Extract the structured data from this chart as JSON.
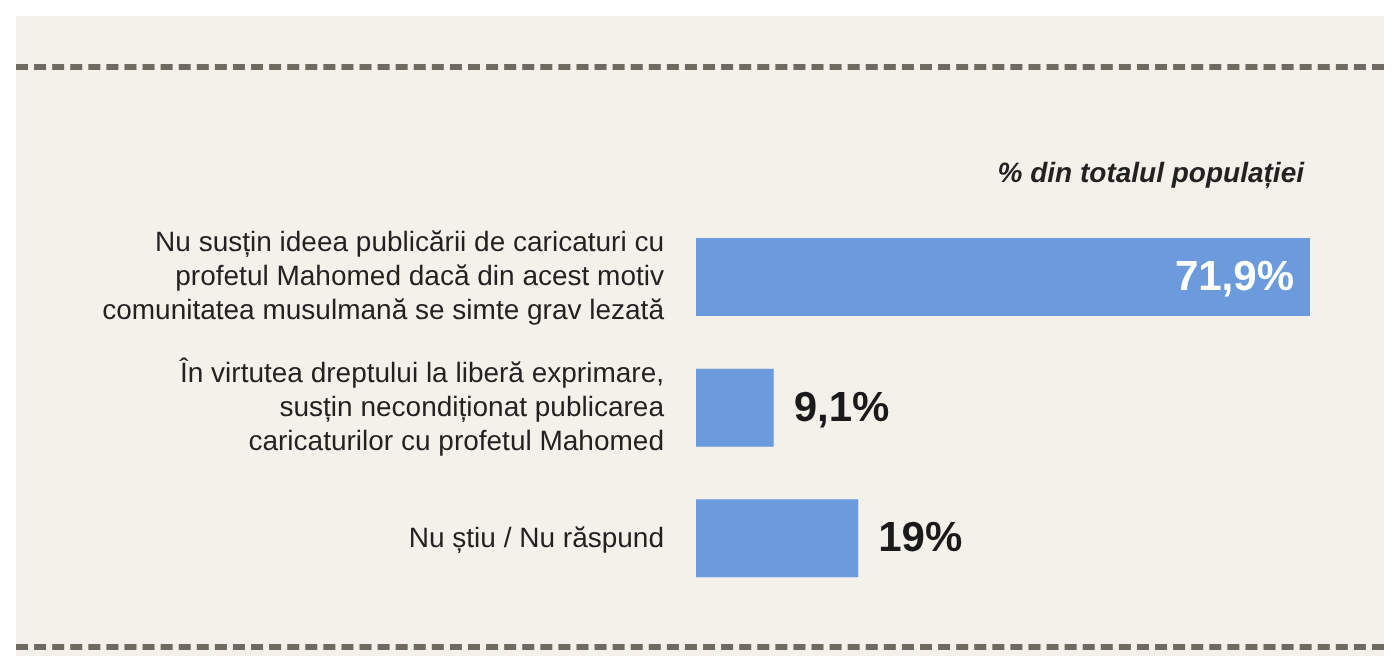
{
  "chart_data": {
    "type": "bar",
    "orientation": "horizontal",
    "annotations": [
      "% din totalul populației"
    ],
    "categories": [
      "Nu susțin ideea publicării de caricaturi cu profetul Mahomed dacă din acest motiv comunitatea musulmană se simte grav lezată",
      "În virtutea dreptului la liberă exprimare, susțin necondiționat publicarea caricaturilor cu profetul Mahomed",
      "Nu știu / Nu răspund"
    ],
    "values": [
      71.9,
      9.1,
      19
    ],
    "value_labels": [
      "71,9%",
      "9,1%",
      "19%"
    ],
    "color": "#6b9bdc"
  }
}
